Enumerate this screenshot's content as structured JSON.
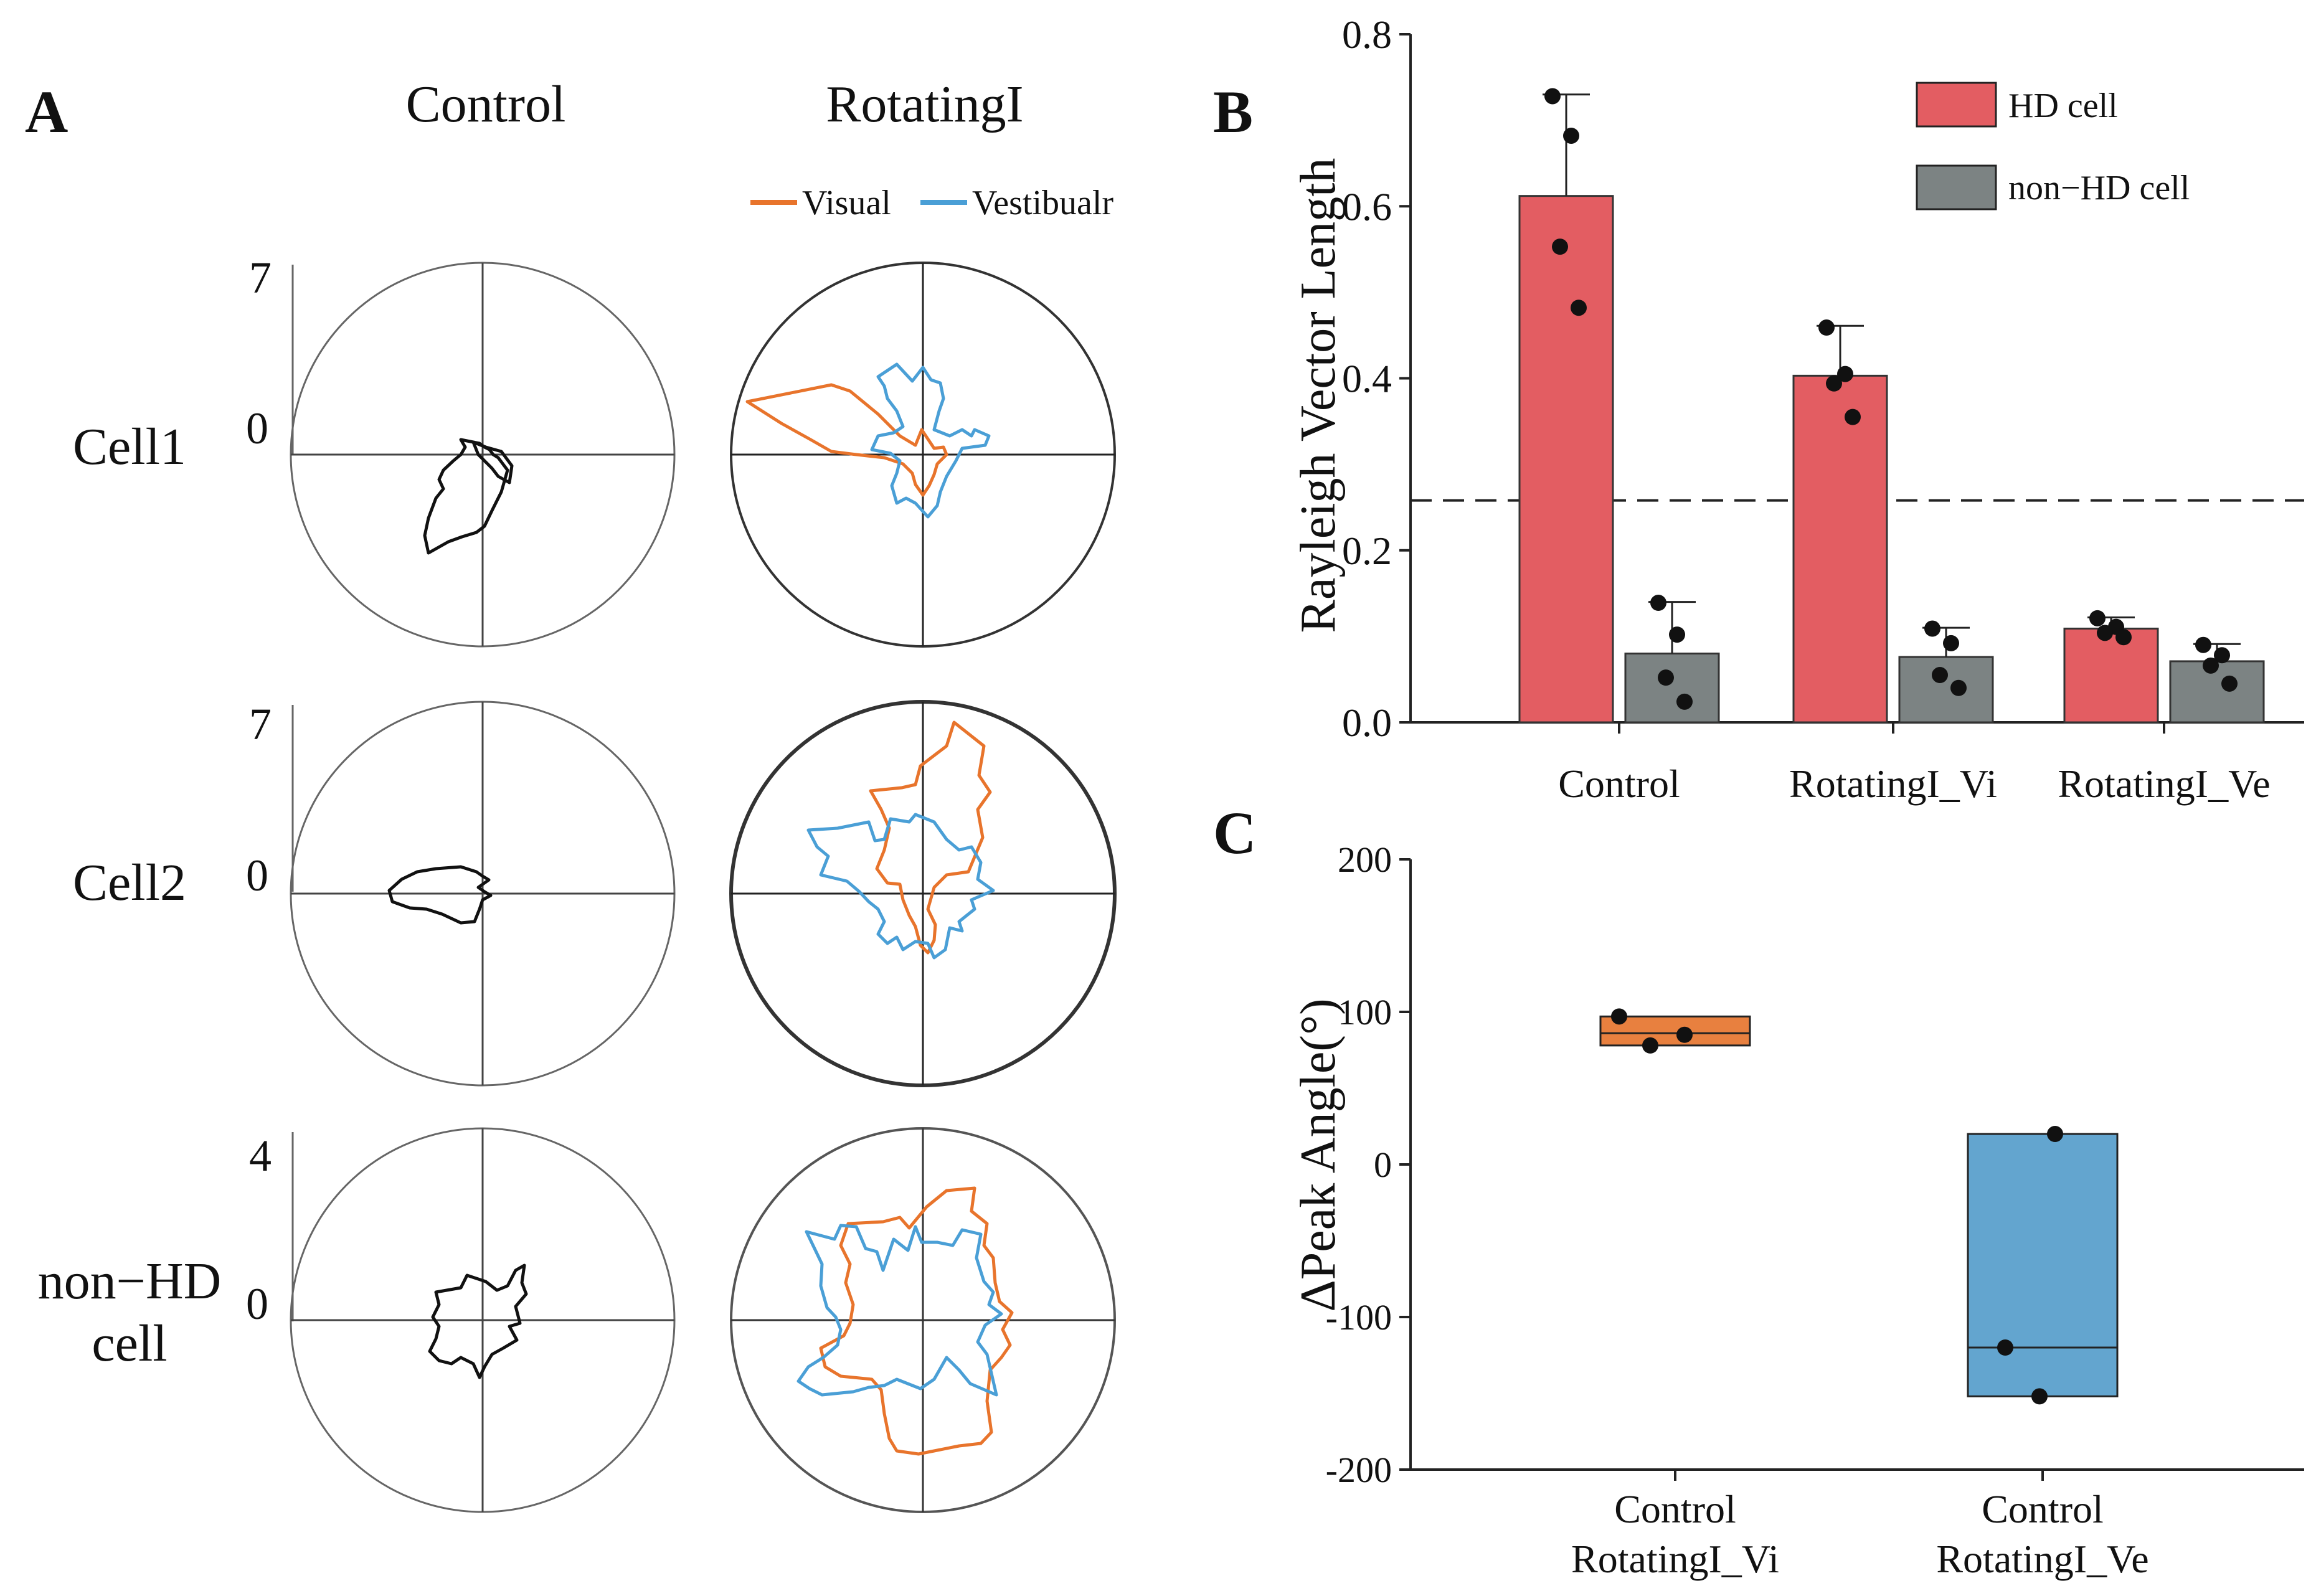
{
  "panels": {
    "a": {
      "letter": "A",
      "col_titles": [
        "Control",
        "RotatingI"
      ],
      "legend": [
        "Visual",
        "Vestibualr"
      ],
      "rows": [
        {
          "label": "Cell1",
          "scale_max": "7",
          "scale_min": "0"
        },
        {
          "label": "Cell2",
          "scale_max": "7",
          "scale_min": "0"
        },
        {
          "label_line1": "non−HD",
          "label_line2": "cell",
          "scale_max": "4",
          "scale_min": "0"
        }
      ]
    },
    "b": {
      "letter": "B"
    },
    "c": {
      "letter": "C"
    }
  },
  "colors": {
    "visual": "#e8742c",
    "vestibular": "#4a9fd6",
    "hd_bar": "#e35d62",
    "non_hd_bar": "#7c8383",
    "box_vi": "#e8803f",
    "box_ve": "#63a5cf"
  },
  "chart_data": [
    {
      "type": "polar-line",
      "panel": "A",
      "description_of_traces": "firing-rate polar plots; Control column black trace, RotatingI column Visual (orange) and Vestibualr (blue) traces",
      "rows": [
        "Cell1",
        "Cell2",
        "non−HD cell"
      ],
      "radial_max": [
        7,
        7,
        4
      ],
      "series": [
        "Visual",
        "Vestibualr"
      ]
    },
    {
      "type": "bar",
      "panel": "B",
      "categories": [
        "Control",
        "RotatingI_Vi",
        "RotatingI_Ve"
      ],
      "series": [
        {
          "name": "HD cell",
          "values": [
            0.612,
            0.403,
            0.109
          ],
          "errors": [
            0.118,
            0.058,
            0.013
          ],
          "points": [
            [
              0.728,
              0.682,
              0.553,
              0.482
            ],
            [
              0.459,
              0.405,
              0.394,
              0.355
            ],
            [
              0.121,
              0.111,
              0.104,
              0.099
            ]
          ]
        },
        {
          "name": "non−HD cell",
          "values": [
            0.08,
            0.076,
            0.071
          ],
          "errors": [
            0.06,
            0.034,
            0.02
          ],
          "points": [
            [
              0.139,
              0.102,
              0.052,
              0.024
            ],
            [
              0.109,
              0.092,
              0.055,
              0.04
            ],
            [
              0.09,
              0.078,
              0.066,
              0.045
            ]
          ]
        }
      ],
      "ylabel": "Rayleigh Vector Length",
      "ylim": [
        0,
        0.8
      ],
      "yticks": [
        "0.0",
        "0.2",
        "0.4",
        "0.6",
        "0.8"
      ],
      "threshold": 0.258,
      "legend_position": "top-right"
    },
    {
      "type": "box",
      "panel": "C",
      "categories": [
        [
          "Control",
          "RotatingI_Vi"
        ],
        [
          "Control",
          "RotatingI_Ve"
        ]
      ],
      "boxes": [
        {
          "q1": 78,
          "median": 86,
          "q3": 97,
          "points": [
            97,
            85,
            78
          ]
        },
        {
          "q1": -152,
          "median": -120,
          "q3": 20,
          "points": [
            20,
            -120,
            -152
          ]
        }
      ],
      "ylabel": "ΔPeak Angle(°)",
      "ylim": [
        -200,
        200
      ],
      "yticks": [
        "200",
        "100",
        "0",
        "-100",
        "-200"
      ]
    }
  ]
}
